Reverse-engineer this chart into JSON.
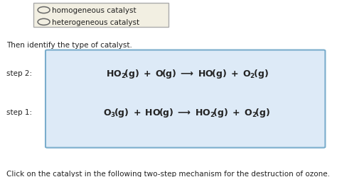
{
  "title": "Click on the catalyst in the following two-step mechanism for the destruction of ozone.",
  "step1_label": "step 1:",
  "step2_label": "step 2:",
  "then_text": "Then identify the type of catalyst.",
  "option1": "heterogeneous catalyst",
  "option2": "homogeneous catalyst",
  "bg_color": "#ffffff",
  "box_fill": "#ddeaf7",
  "box_edge": "#7aadcc",
  "small_box_fill": "#f2efe2",
  "small_box_edge": "#aaaaaa",
  "text_color": "#222222",
  "title_fontsize": 7.5,
  "step_fontsize": 9.0,
  "label_fontsize": 7.5,
  "then_fontsize": 7.5,
  "option_fontsize": 7.5
}
